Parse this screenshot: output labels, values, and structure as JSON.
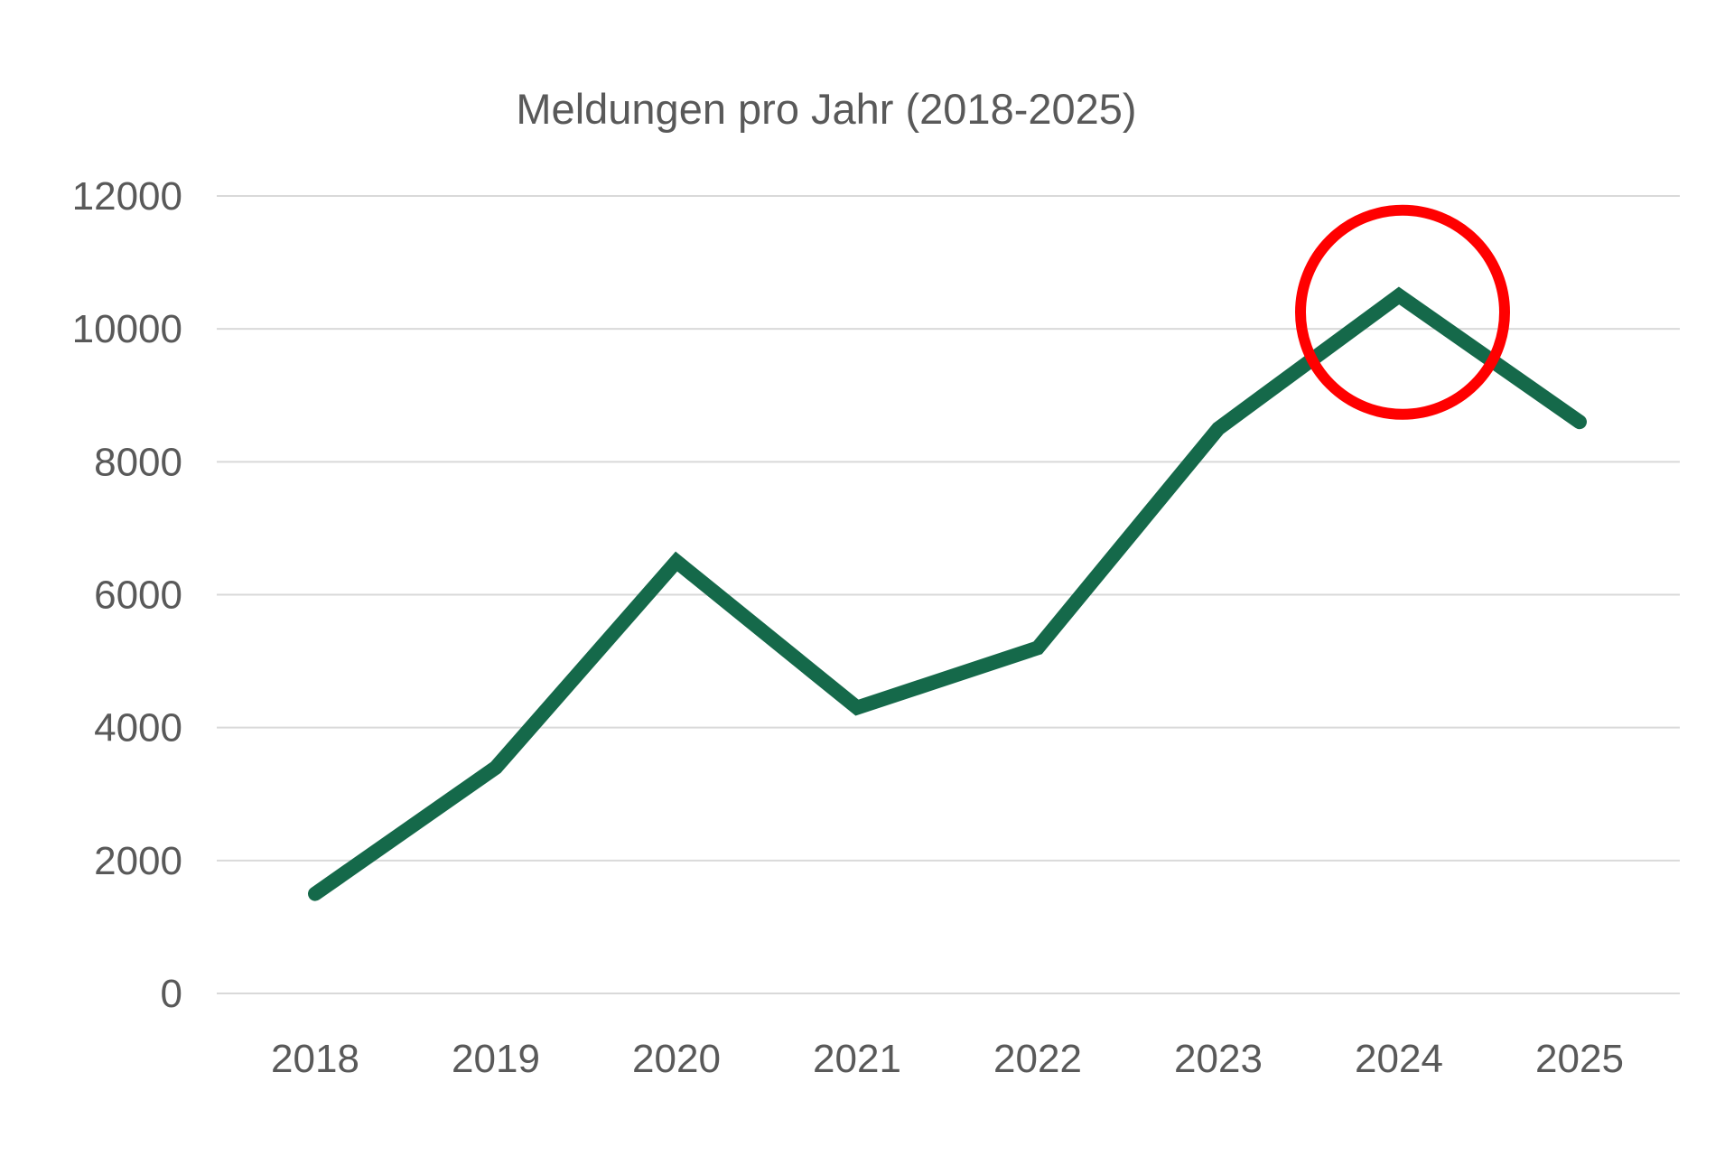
{
  "chart_data": {
    "type": "line",
    "title": "Meldungen pro Jahr (2018-2025)",
    "categories": [
      "2018",
      "2019",
      "2020",
      "2021",
      "2022",
      "2023",
      "2024",
      "2025"
    ],
    "series": [
      {
        "name": "Meldungen",
        "values": [
          1500,
          3400,
          6500,
          4300,
          5200,
          8500,
          10500,
          8600
        ]
      }
    ],
    "xlabel": "",
    "ylabel": "",
    "ylim": [
      0,
      12000
    ],
    "ytick_step": 2000,
    "yticks": [
      0,
      2000,
      4000,
      6000,
      8000,
      10000,
      12000
    ],
    "grid": "horizontal",
    "legend": "none",
    "line_color": "#15694A",
    "grid_color": "#D9D9D9",
    "label_color": "#595959",
    "annotation": {
      "shape": "circle",
      "purpose": "highlights the 2024 peak",
      "center_year": "2024",
      "center_value": 10250,
      "radius_px": 113,
      "stroke_px": 12,
      "color": "#FF0000"
    }
  }
}
